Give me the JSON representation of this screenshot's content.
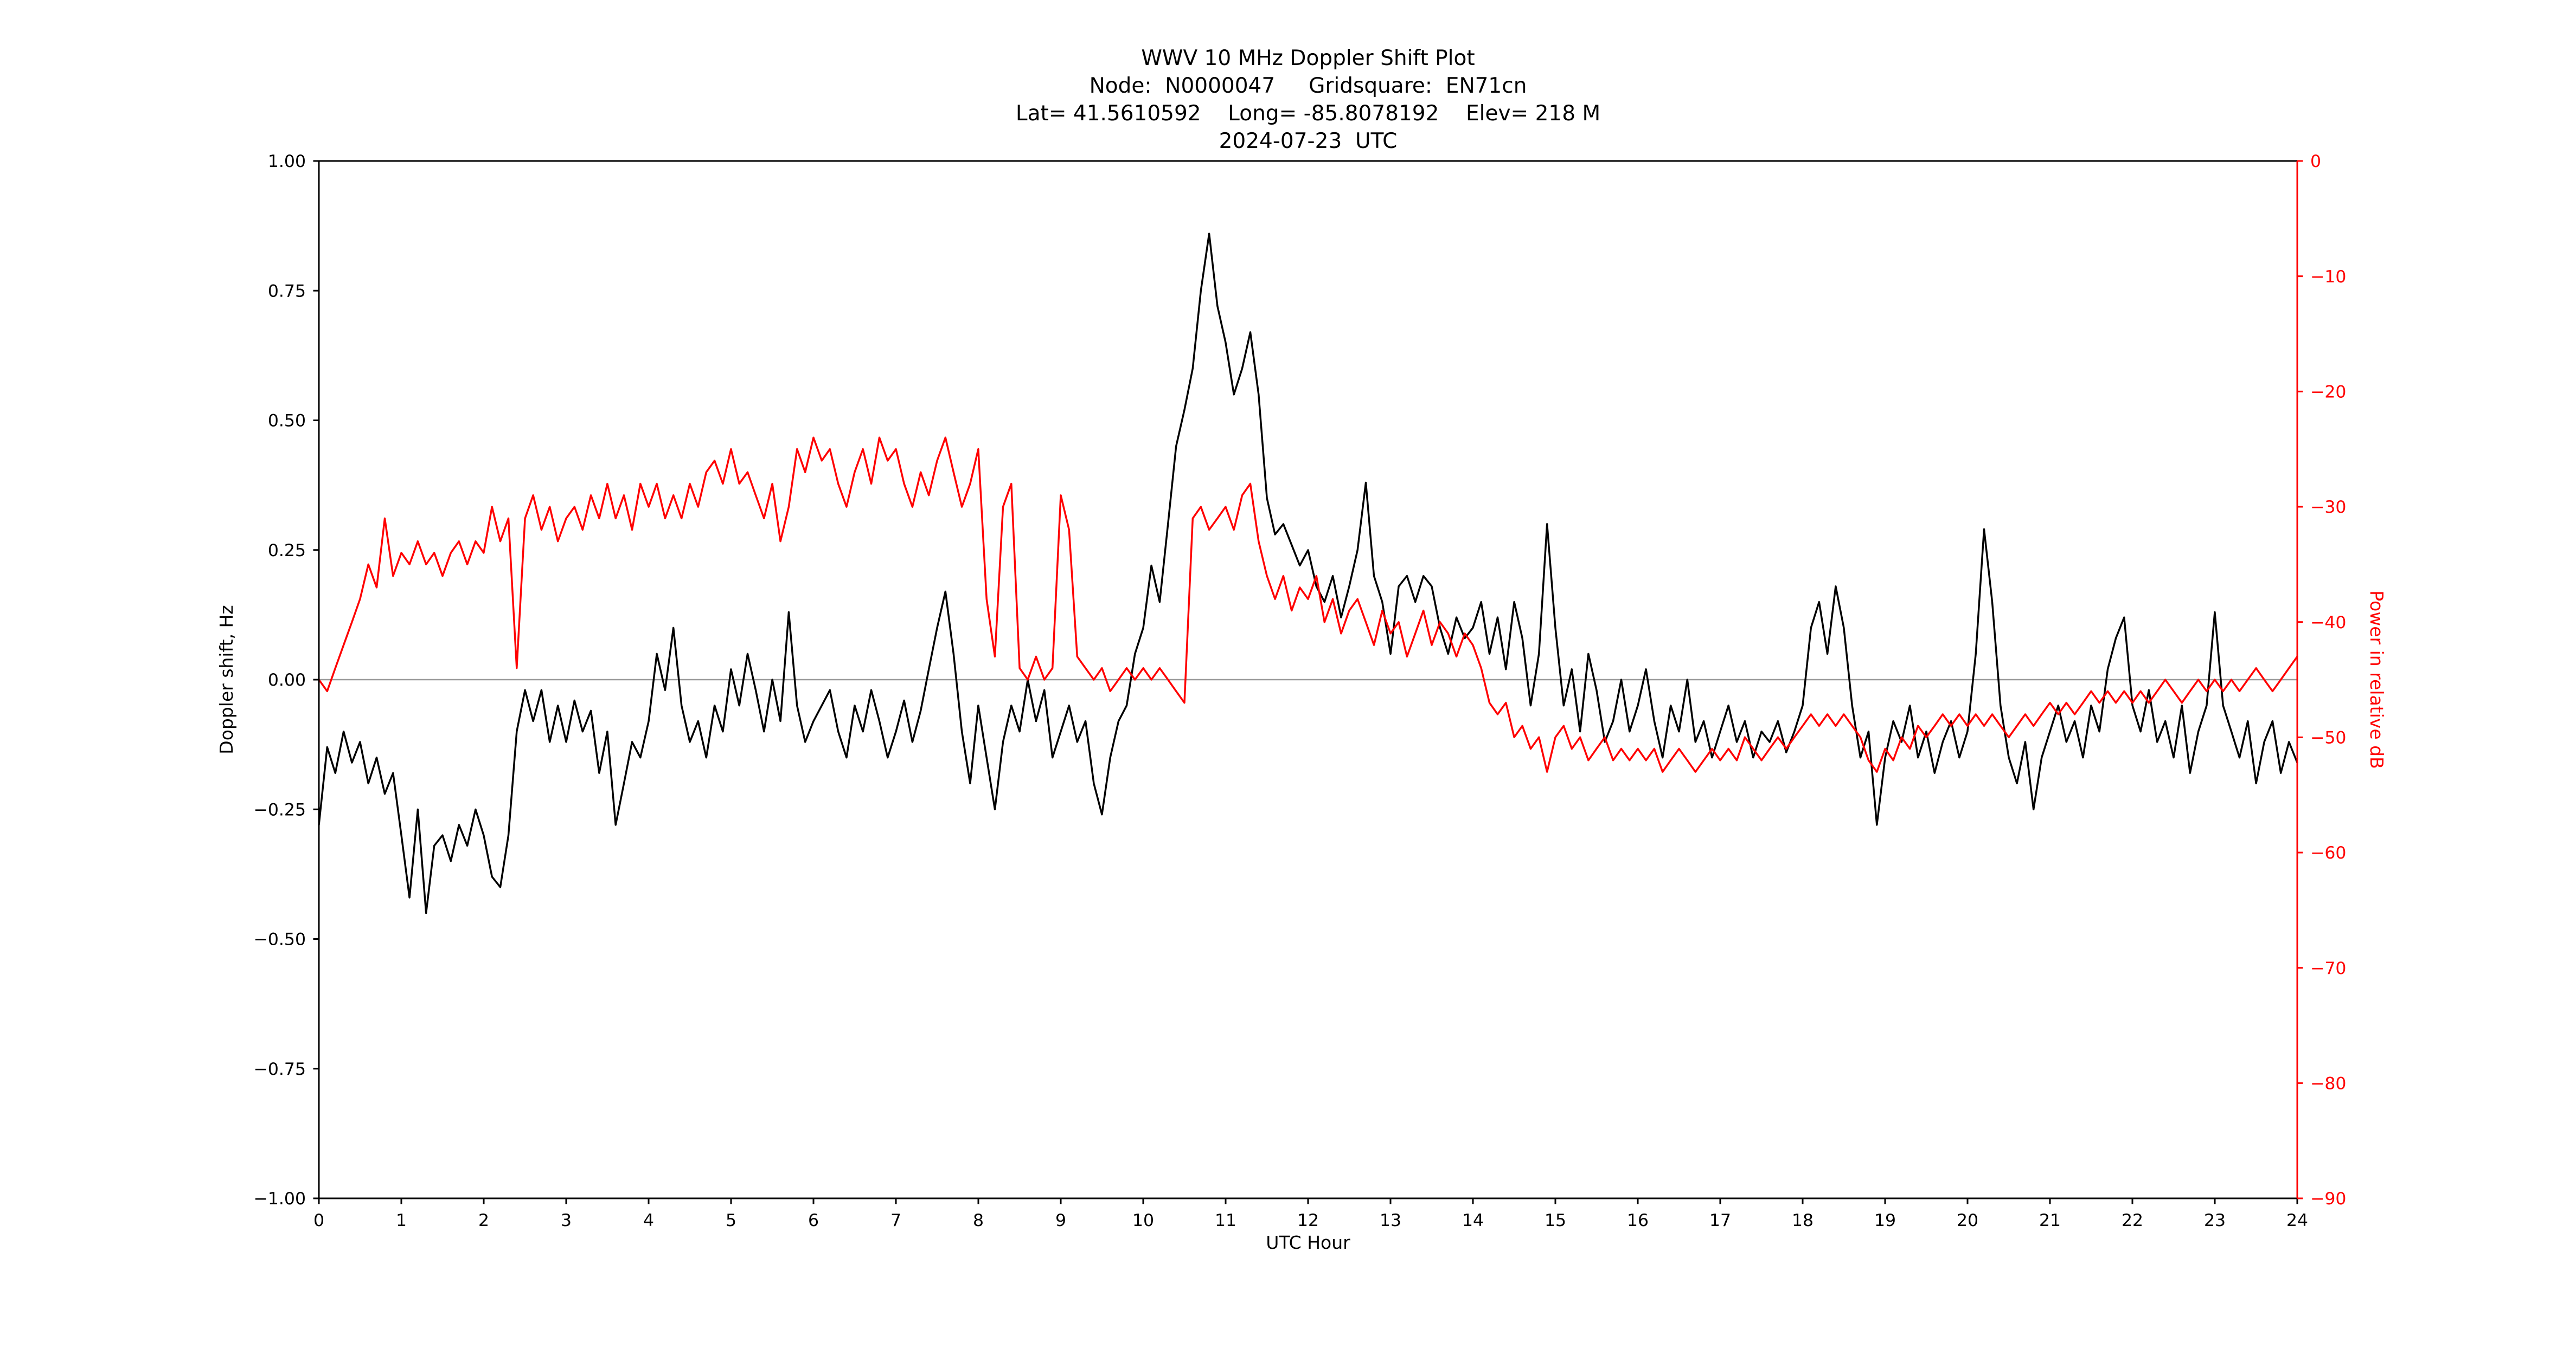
{
  "chart": {
    "title_lines": [
      "WWV 10 MHz Doppler Shift Plot",
      "Node:  N0000047     Gridsquare:  EN71cn",
      "Lat= 41.5610592    Long= -85.8078192    Elev= 218 M",
      "2024-07-23  UTC"
    ],
    "xlabel": "UTC Hour",
    "ylabel_left": "Doppler shift, Hz",
    "ylabel_right": "Power in relative dB",
    "colors": {
      "doppler_series": "#000000",
      "power_series": "#ff0000",
      "zero_line": "#9a9a9a",
      "axis": "#000000",
      "right_axis": "#ff0000",
      "background": "#ffffff"
    }
  },
  "chart_data": {
    "type": "line",
    "title": "WWV 10 MHz Doppler Shift Plot",
    "subtitle_lines": [
      "Node:  N0000047     Gridsquare:  EN71cn",
      "Lat= 41.5610592    Long= -85.8078192    Elev= 218 M",
      "2024-07-23  UTC"
    ],
    "xlabel": "UTC Hour",
    "grid": false,
    "legend": "none",
    "x_range": [
      0,
      24
    ],
    "x_start": 0,
    "x_step": 0.1,
    "n_points": 241,
    "x_tick_values": [
      0,
      1,
      2,
      3,
      4,
      5,
      6,
      7,
      8,
      9,
      10,
      11,
      12,
      13,
      14,
      15,
      16,
      17,
      18,
      19,
      20,
      21,
      22,
      23,
      24
    ],
    "x_tick_labels": [
      "0",
      "1",
      "2",
      "3",
      "4",
      "5",
      "6",
      "7",
      "8",
      "9",
      "10",
      "11",
      "12",
      "13",
      "14",
      "15",
      "16",
      "17",
      "18",
      "19",
      "20",
      "21",
      "22",
      "23",
      "24"
    ],
    "left_axis": {
      "label": "Doppler shift, Hz",
      "range": [
        -1.0,
        1.0
      ],
      "tick_values": [
        1.0,
        0.75,
        0.5,
        0.25,
        0.0,
        -0.25,
        -0.5,
        -0.75,
        -1.0
      ],
      "tick_labels": [
        "1.00",
        "0.75",
        "0.50",
        "0.25",
        "0.00",
        "−0.25",
        "−0.50",
        "−0.75",
        "−1.00"
      ],
      "color": "#000000"
    },
    "right_axis": {
      "label": "Power in relative dB",
      "range": [
        -90,
        0
      ],
      "tick_values": [
        0,
        -10,
        -20,
        -30,
        -40,
        -50,
        -60,
        -70,
        -80,
        -90
      ],
      "tick_labels": [
        "0",
        "−10",
        "−20",
        "−30",
        "−40",
        "−50",
        "−60",
        "−70",
        "−80",
        "−90"
      ],
      "color": "#ff0000"
    },
    "zero_line_y_left": 0.0,
    "series": [
      {
        "name": "Doppler shift, Hz",
        "axis": "left",
        "color": "#000000",
        "values": [
          -0.28,
          -0.13,
          -0.18,
          -0.1,
          -0.16,
          -0.12,
          -0.2,
          -0.15,
          -0.22,
          -0.18,
          -0.3,
          -0.42,
          -0.25,
          -0.45,
          -0.32,
          -0.3,
          -0.35,
          -0.28,
          -0.32,
          -0.25,
          -0.3,
          -0.38,
          -0.4,
          -0.3,
          -0.1,
          -0.02,
          -0.08,
          -0.02,
          -0.12,
          -0.05,
          -0.12,
          -0.04,
          -0.1,
          -0.06,
          -0.18,
          -0.1,
          -0.28,
          -0.2,
          -0.12,
          -0.15,
          -0.08,
          0.05,
          -0.02,
          0.1,
          -0.05,
          -0.12,
          -0.08,
          -0.15,
          -0.05,
          -0.1,
          0.02,
          -0.05,
          0.05,
          -0.02,
          -0.1,
          0.0,
          -0.08,
          0.13,
          -0.05,
          -0.12,
          -0.08,
          -0.05,
          -0.02,
          -0.1,
          -0.15,
          -0.05,
          -0.1,
          -0.02,
          -0.08,
          -0.15,
          -0.1,
          -0.04,
          -0.12,
          -0.06,
          0.02,
          0.1,
          0.17,
          0.05,
          -0.1,
          -0.2,
          -0.05,
          -0.15,
          -0.25,
          -0.12,
          -0.05,
          -0.1,
          0.0,
          -0.08,
          -0.02,
          -0.15,
          -0.1,
          -0.05,
          -0.12,
          -0.08,
          -0.2,
          -0.26,
          -0.15,
          -0.08,
          -0.05,
          0.05,
          0.1,
          0.22,
          0.15,
          0.3,
          0.45,
          0.52,
          0.6,
          0.75,
          0.86,
          0.72,
          0.65,
          0.55,
          0.6,
          0.67,
          0.55,
          0.35,
          0.28,
          0.3,
          0.26,
          0.22,
          0.25,
          0.18,
          0.15,
          0.2,
          0.12,
          0.18,
          0.25,
          0.38,
          0.2,
          0.15,
          0.05,
          0.18,
          0.2,
          0.15,
          0.2,
          0.18,
          0.1,
          0.05,
          0.12,
          0.08,
          0.1,
          0.15,
          0.05,
          0.12,
          0.02,
          0.15,
          0.08,
          -0.05,
          0.05,
          0.3,
          0.1,
          -0.05,
          0.02,
          -0.1,
          0.05,
          -0.02,
          -0.12,
          -0.08,
          0.0,
          -0.1,
          -0.05,
          0.02,
          -0.08,
          -0.15,
          -0.05,
          -0.1,
          0.0,
          -0.12,
          -0.08,
          -0.15,
          -0.1,
          -0.05,
          -0.12,
          -0.08,
          -0.15,
          -0.1,
          -0.12,
          -0.08,
          -0.14,
          -0.1,
          -0.05,
          0.1,
          0.15,
          0.05,
          0.18,
          0.1,
          -0.05,
          -0.15,
          -0.1,
          -0.28,
          -0.15,
          -0.08,
          -0.12,
          -0.05,
          -0.15,
          -0.1,
          -0.18,
          -0.12,
          -0.08,
          -0.15,
          -0.1,
          0.05,
          0.29,
          0.15,
          -0.05,
          -0.15,
          -0.2,
          -0.12,
          -0.25,
          -0.15,
          -0.1,
          -0.05,
          -0.12,
          -0.08,
          -0.15,
          -0.05,
          -0.1,
          0.02,
          0.08,
          0.12,
          -0.05,
          -0.1,
          -0.02,
          -0.12,
          -0.08,
          -0.15,
          -0.05,
          -0.18,
          -0.1,
          -0.05,
          0.13,
          -0.05,
          -0.1,
          -0.15,
          -0.08,
          -0.2,
          -0.12,
          -0.08,
          -0.18,
          -0.12,
          -0.16
        ]
      },
      {
        "name": "Power in relative dB",
        "axis": "right",
        "color": "#ff0000",
        "values": [
          -45,
          -46,
          -44,
          -42,
          -40,
          -38,
          -35,
          -37,
          -31,
          -36,
          -34,
          -35,
          -33,
          -35,
          -34,
          -36,
          -34,
          -33,
          -35,
          -33,
          -34,
          -30,
          -33,
          -31,
          -44,
          -31,
          -29,
          -32,
          -30,
          -33,
          -31,
          -30,
          -32,
          -29,
          -31,
          -28,
          -31,
          -29,
          -32,
          -28,
          -30,
          -28,
          -31,
          -29,
          -31,
          -28,
          -30,
          -27,
          -26,
          -28,
          -25,
          -28,
          -27,
          -29,
          -31,
          -28,
          -33,
          -30,
          -25,
          -27,
          -24,
          -26,
          -25,
          -28,
          -30,
          -27,
          -25,
          -28,
          -24,
          -26,
          -25,
          -28,
          -30,
          -27,
          -29,
          -26,
          -24,
          -27,
          -30,
          -28,
          -25,
          -38,
          -43,
          -30,
          -28,
          -44,
          -45,
          -43,
          -45,
          -44,
          -29,
          -32,
          -43,
          -44,
          -45,
          -44,
          -46,
          -45,
          -44,
          -45,
          -44,
          -45,
          -44,
          -45,
          -46,
          -47,
          -31,
          -30,
          -32,
          -31,
          -30,
          -32,
          -29,
          -28,
          -33,
          -36,
          -38,
          -36,
          -39,
          -37,
          -38,
          -36,
          -40,
          -38,
          -41,
          -39,
          -38,
          -40,
          -42,
          -39,
          -41,
          -40,
          -43,
          -41,
          -39,
          -42,
          -40,
          -41,
          -43,
          -41,
          -42,
          -44,
          -47,
          -48,
          -47,
          -50,
          -49,
          -51,
          -50,
          -53,
          -50,
          -49,
          -51,
          -50,
          -52,
          -51,
          -50,
          -52,
          -51,
          -52,
          -51,
          -52,
          -51,
          -53,
          -52,
          -51,
          -52,
          -53,
          -52,
          -51,
          -52,
          -51,
          -52,
          -50,
          -51,
          -52,
          -51,
          -50,
          -51,
          -50,
          -49,
          -48,
          -49,
          -48,
          -49,
          -48,
          -49,
          -50,
          -52,
          -53,
          -51,
          -52,
          -50,
          -51,
          -49,
          -50,
          -49,
          -48,
          -49,
          -48,
          -49,
          -48,
          -49,
          -48,
          -49,
          -50,
          -49,
          -48,
          -49,
          -48,
          -47,
          -48,
          -47,
          -48,
          -47,
          -46,
          -47,
          -46,
          -47,
          -46,
          -47,
          -46,
          -47,
          -46,
          -45,
          -46,
          -47,
          -46,
          -45,
          -46,
          -45,
          -46,
          -45,
          -46,
          -45,
          -44,
          -45,
          -46,
          -45,
          -44,
          -43
        ]
      }
    ]
  }
}
